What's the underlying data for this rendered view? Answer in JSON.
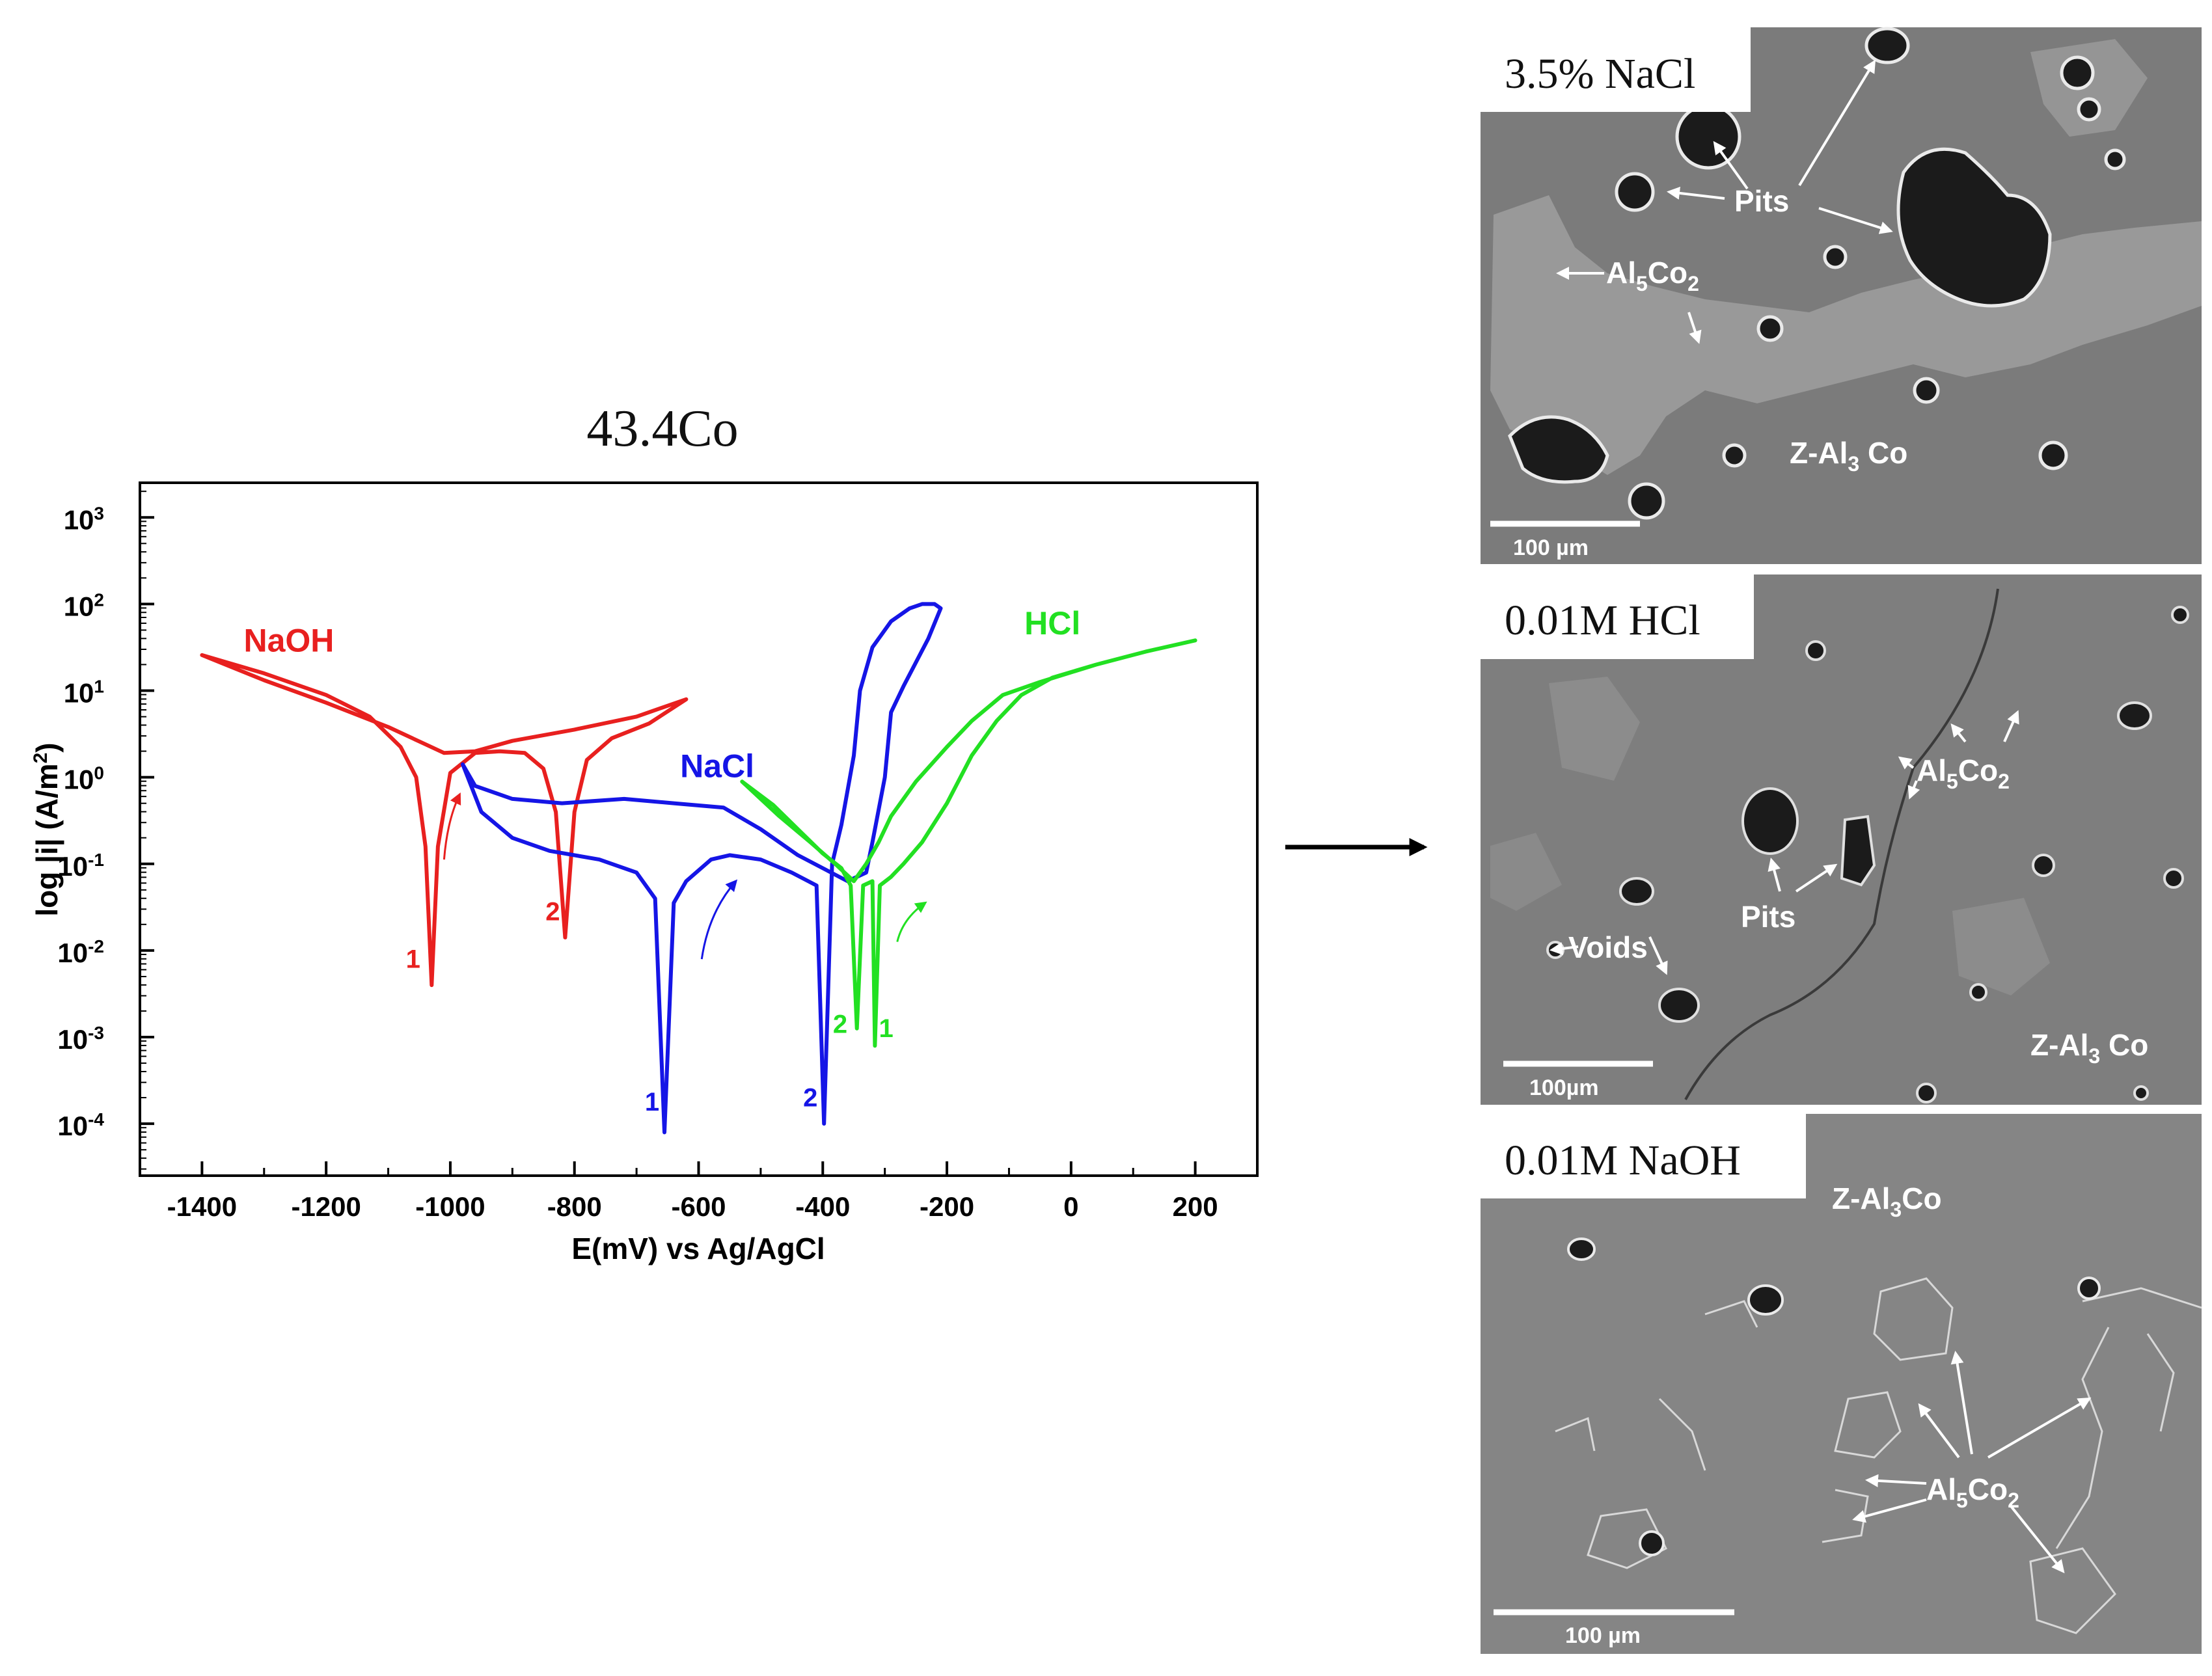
{
  "chart_data": {
    "type": "line",
    "title": "43.4Co",
    "xlabel": "E(mV) vs Ag/AgCl",
    "ylabel": "log |i| (A/m",
    "ylabel_sup": "2",
    "ylabel_end": ")",
    "xlim": [
      -1500,
      300
    ],
    "ylim_log10": [
      -4.6,
      3.4
    ],
    "y_scale": "log",
    "grid": false,
    "x_ticks": [
      -1400,
      -1200,
      -1000,
      -800,
      -600,
      -400,
      -200,
      0,
      200
    ],
    "x_tick_labels": [
      "-1400",
      "-1200",
      "-1000",
      "-800",
      "-600",
      "-400",
      "-200",
      "0",
      "200"
    ],
    "y_ticks": [
      {
        "base": "10",
        "exp": "3",
        "log": 3
      },
      {
        "base": "10",
        "exp": "2",
        "log": 2
      },
      {
        "base": "10",
        "exp": "1",
        "log": 1
      },
      {
        "base": "10",
        "exp": "0",
        "log": 0
      },
      {
        "base": "10",
        "exp": "-1",
        "log": -1
      },
      {
        "base": "10",
        "exp": "-2",
        "log": -2
      },
      {
        "base": "10",
        "exp": "-3",
        "log": -3
      },
      {
        "base": "10",
        "exp": "-4",
        "log": -4
      }
    ],
    "series": [
      {
        "name": "NaOH",
        "color": "#e8201f",
        "label_at": [
          -1260,
          1.45
        ],
        "points": [
          [
            -1400,
            1.41
          ],
          [
            -1300,
            1.2
          ],
          [
            -1200,
            0.95
          ],
          [
            -1130,
            0.7
          ],
          [
            -1080,
            0.35
          ],
          [
            -1055,
            0.0
          ],
          [
            -1040,
            -0.8
          ],
          [
            -1030,
            -2.4
          ],
          [
            -1020,
            -0.8
          ],
          [
            -1000,
            0.05
          ],
          [
            -960,
            0.28
          ],
          [
            -920,
            0.3
          ],
          [
            -880,
            0.28
          ],
          [
            -850,
            0.1
          ],
          [
            -830,
            -0.4
          ],
          [
            -815,
            -1.85
          ],
          [
            -800,
            -0.4
          ],
          [
            -780,
            0.2
          ],
          [
            -740,
            0.45
          ],
          [
            -680,
            0.62
          ],
          [
            -620,
            0.9
          ],
          [
            -700,
            0.7
          ],
          [
            -800,
            0.55
          ],
          [
            -900,
            0.42
          ],
          [
            -960,
            0.3
          ],
          [
            -1010,
            0.28
          ],
          [
            -1100,
            0.58
          ],
          [
            -1200,
            0.86
          ],
          [
            -1300,
            1.12
          ],
          [
            -1400,
            1.41
          ]
        ]
      },
      {
        "name": "NaCl",
        "color": "#1515e6",
        "label_at": [
          -570,
          0.0
        ],
        "points": [
          [
            -980,
            0.15
          ],
          [
            -950,
            -0.4
          ],
          [
            -900,
            -0.7
          ],
          [
            -840,
            -0.85
          ],
          [
            -760,
            -0.95
          ],
          [
            -700,
            -1.1
          ],
          [
            -670,
            -1.4
          ],
          [
            -655,
            -4.1
          ],
          [
            -640,
            -1.45
          ],
          [
            -620,
            -1.2
          ],
          [
            -580,
            -0.95
          ],
          [
            -550,
            -0.9
          ],
          [
            -500,
            -0.95
          ],
          [
            -450,
            -1.1
          ],
          [
            -410,
            -1.25
          ],
          [
            -398,
            -4.0
          ],
          [
            -385,
            -1.0
          ],
          [
            -370,
            -0.55
          ],
          [
            -350,
            0.25
          ],
          [
            -340,
            1.0
          ],
          [
            -320,
            1.5
          ],
          [
            -290,
            1.8
          ],
          [
            -260,
            1.95
          ],
          [
            -240,
            2.0
          ],
          [
            -220,
            2.0
          ],
          [
            -210,
            1.95
          ],
          [
            -230,
            1.6
          ],
          [
            -270,
            1.05
          ],
          [
            -290,
            0.75
          ],
          [
            -300,
            0.0
          ],
          [
            -320,
            -0.75
          ],
          [
            -330,
            -1.1
          ],
          [
            -360,
            -1.2
          ],
          [
            -400,
            -1.05
          ],
          [
            -440,
            -0.9
          ],
          [
            -500,
            -0.6
          ],
          [
            -560,
            -0.35
          ],
          [
            -640,
            -0.3
          ],
          [
            -720,
            -0.25
          ],
          [
            -820,
            -0.3
          ],
          [
            -900,
            -0.25
          ],
          [
            -960,
            -0.1
          ],
          [
            -980,
            0.15
          ]
        ]
      },
      {
        "name": "HCl",
        "color": "#22e022",
        "label_at": [
          -30,
          1.65
        ],
        "points": [
          [
            -530,
            -0.05
          ],
          [
            -480,
            -0.32
          ],
          [
            -440,
            -0.6
          ],
          [
            -400,
            -0.88
          ],
          [
            -370,
            -1.05
          ],
          [
            -355,
            -1.25
          ],
          [
            -345,
            -2.9
          ],
          [
            -335,
            -1.25
          ],
          [
            -320,
            -1.2
          ],
          [
            -316,
            -3.1
          ],
          [
            -308,
            -1.25
          ],
          [
            -290,
            -1.15
          ],
          [
            -270,
            -1.0
          ],
          [
            -240,
            -0.75
          ],
          [
            -200,
            -0.3
          ],
          [
            -160,
            0.25
          ],
          [
            -120,
            0.65
          ],
          [
            -80,
            0.95
          ],
          [
            -30,
            1.15
          ],
          [
            40,
            1.3
          ],
          [
            120,
            1.45
          ],
          [
            200,
            1.58
          ],
          [
            120,
            1.45
          ],
          [
            40,
            1.3
          ],
          [
            -50,
            1.1
          ],
          [
            -110,
            0.95
          ],
          [
            -160,
            0.65
          ],
          [
            -200,
            0.35
          ],
          [
            -250,
            -0.05
          ],
          [
            -290,
            -0.45
          ],
          [
            -310,
            -0.75
          ],
          [
            -330,
            -1.0
          ],
          [
            -350,
            -1.2
          ],
          [
            -380,
            -1.0
          ],
          [
            -420,
            -0.75
          ],
          [
            -470,
            -0.45
          ],
          [
            -530,
            -0.05
          ]
        ]
      }
    ],
    "curve_numbers": [
      {
        "text": "1",
        "x": -1060,
        "y": -2.2,
        "series": 0
      },
      {
        "text": "2",
        "x": -835,
        "y": -1.65,
        "series": 0
      },
      {
        "text": "1",
        "x": -675,
        "y": -3.85,
        "series": 1
      },
      {
        "text": "2",
        "x": -420,
        "y": -3.8,
        "series": 1
      },
      {
        "text": "2",
        "x": -372,
        "y": -2.95,
        "series": 2
      },
      {
        "text": "1",
        "x": -298,
        "y": -3.0,
        "series": 2
      }
    ],
    "direction_arrows": [
      {
        "series": 0,
        "x1": -1010,
        "y1": -0.95,
        "x2": -985,
        "y2": -0.2
      },
      {
        "series": 1,
        "x1": -595,
        "y1": -2.1,
        "x2": -540,
        "y2": -1.2
      },
      {
        "series": 2,
        "x1": -280,
        "y1": -1.9,
        "x2": -235,
        "y2": -1.45
      }
    ]
  },
  "panels": [
    {
      "caption": "3.5% NaCl",
      "scale_bar": "100 µm",
      "labels": [
        {
          "name": "pits-label",
          "text": "Pits"
        },
        {
          "name": "phase-label-al5co2",
          "base": "Al",
          "sub1": "5",
          "mid": "Co",
          "sub2": "2"
        },
        {
          "name": "phase-label-zal3co",
          "base": "Z-Al",
          "sub1": "3",
          "mid": " Co"
        }
      ]
    },
    {
      "caption": "0.01M HCl",
      "scale_bar": "100µm",
      "labels": [
        {
          "name": "phase-label-al5co2",
          "base": "Al",
          "sub1": "5",
          "mid": "Co",
          "sub2": "2"
        },
        {
          "name": "pits-label",
          "text": "Pits"
        },
        {
          "name": "voids-label",
          "text": "Voids"
        },
        {
          "name": "phase-label-zal3co",
          "base": "Z-Al",
          "sub1": "3",
          "mid": " Co"
        }
      ]
    },
    {
      "caption": "0.01M NaOH",
      "scale_bar": "100 µm",
      "labels": [
        {
          "name": "phase-label-zal3co",
          "base": "Z-Al",
          "sub1": "3",
          "mid": "Co"
        },
        {
          "name": "phase-label-al5co2",
          "base": "Al",
          "sub1": "5",
          "mid": "Co",
          "sub2": "2"
        }
      ]
    }
  ]
}
